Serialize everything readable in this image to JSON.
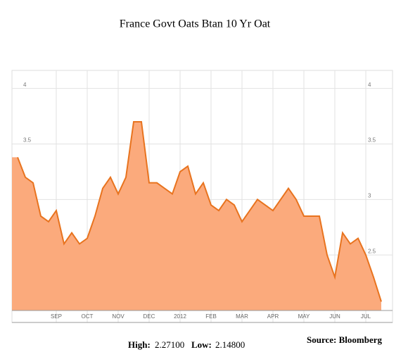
{
  "chart_data": {
    "type": "area",
    "title": "France Govt Oats Btan 10 Yr Oat",
    "categories": [
      null,
      null,
      null,
      null,
      null,
      "SEP",
      null,
      null,
      null,
      "OCT",
      null,
      null,
      null,
      "NOV",
      null,
      null,
      null,
      "DEC",
      null,
      null,
      null,
      "2012",
      null,
      null,
      null,
      "FEB",
      null,
      null,
      null,
      "MAR",
      null,
      null,
      null,
      "APR",
      null,
      null,
      null,
      "MAY",
      null,
      null,
      null,
      "JUN",
      null,
      null,
      null,
      "JUL",
      null,
      null
    ],
    "values": [
      3.38,
      3.2,
      3.15,
      2.85,
      2.8,
      2.9,
      2.6,
      2.7,
      2.6,
      2.65,
      2.85,
      3.1,
      3.2,
      3.05,
      3.2,
      3.7,
      3.7,
      3.15,
      3.15,
      3.1,
      3.05,
      3.25,
      3.3,
      3.05,
      3.15,
      2.95,
      2.9,
      3.0,
      2.95,
      2.8,
      2.9,
      3.0,
      2.95,
      2.9,
      3.0,
      3.1,
      3.0,
      2.85,
      2.85,
      2.85,
      2.5,
      2.3,
      2.7,
      2.6,
      2.65,
      2.5,
      2.3,
      2.08
    ],
    "color": "#e8731e",
    "fill": "#fbaa7c",
    "ylim": [
      2.0,
      4.15
    ],
    "yticks": [
      2.5,
      3,
      3.5,
      4
    ],
    "grid": true,
    "high_label": "High:",
    "high": "2.27100",
    "low_label": "Low:",
    "low": "2.14800",
    "source": "Source: Bloomberg"
  }
}
